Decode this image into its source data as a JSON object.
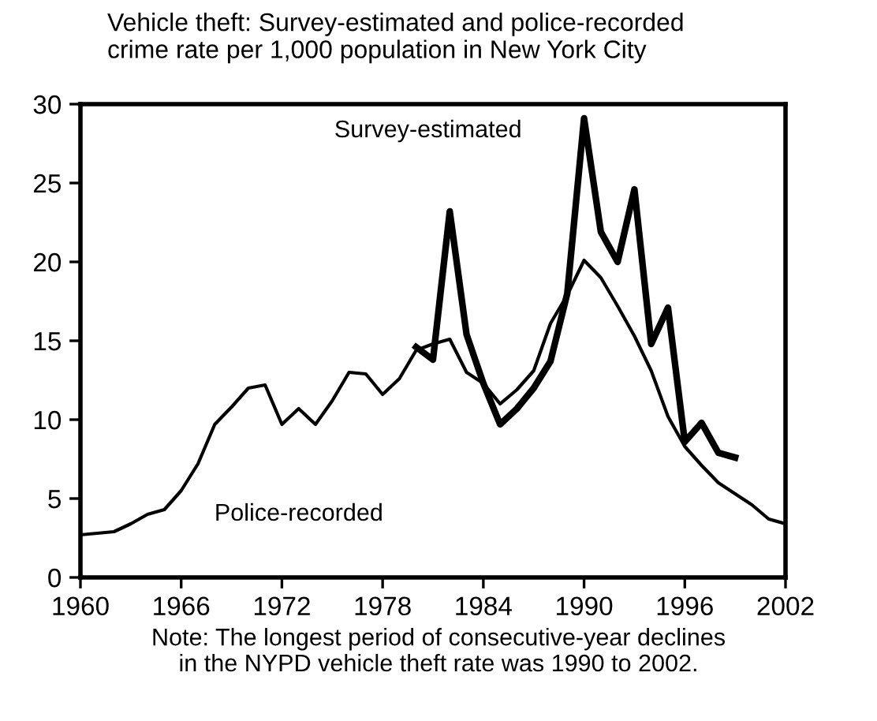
{
  "chart_data": {
    "type": "line",
    "title": "Vehicle theft: Survey-estimated and police-recorded\ncrime rate per 1,000 population in New York City",
    "annotations": [
      "Note: The longest period of consecutive-year declines\nin the NYPD vehicle theft rate was 1990 to 2002."
    ],
    "series": [
      {
        "name": "Survey-estimated",
        "color": "#000000",
        "x": [
          1980,
          1981,
          1982,
          1983,
          1984,
          1985,
          1986,
          1987,
          1988,
          1989,
          1990,
          1991,
          1992,
          1993,
          1994,
          1995,
          1996,
          1997,
          1998,
          1999
        ],
        "values": [
          14.6,
          13.8,
          23.2,
          15.4,
          12.3,
          9.7,
          10.7,
          12.0,
          13.7,
          18.0,
          29.1,
          21.9,
          20.0,
          24.6,
          14.8,
          17.1,
          8.6,
          9.8,
          7.9,
          7.6
        ]
      },
      {
        "name": "Police-recorded",
        "color": "#000000",
        "x": [
          1960,
          1962,
          1963,
          1964,
          1965,
          1966,
          1967,
          1968,
          1969,
          1970,
          1971,
          1972,
          1973,
          1974,
          1975,
          1976,
          1977,
          1978,
          1979,
          1980,
          1981,
          1982,
          1983,
          1984,
          1985,
          1986,
          1987,
          1988,
          1989,
          1990,
          1991,
          1992,
          1993,
          1994,
          1995,
          1996,
          1997,
          1998,
          1999,
          2000,
          2001,
          2002
        ],
        "values": [
          2.7,
          2.9,
          3.4,
          4.0,
          4.3,
          5.5,
          7.2,
          9.7,
          10.8,
          12.0,
          12.2,
          9.7,
          10.7,
          9.7,
          11.2,
          13.0,
          12.9,
          11.6,
          12.6,
          14.4,
          14.8,
          15.1,
          13.0,
          12.3,
          11.0,
          11.9,
          13.1,
          16.1,
          17.9,
          20.1,
          19.0,
          17.2,
          15.3,
          13.1,
          10.2,
          8.3,
          7.1,
          6.0,
          5.3,
          4.6,
          3.7,
          3.4
        ]
      }
    ],
    "xlim": [
      1960,
      2002
    ],
    "xticks": [
      1960,
      1966,
      1972,
      1978,
      1984,
      1990,
      1996,
      2002
    ],
    "ylim": [
      0,
      30
    ],
    "yticks": [
      0,
      5,
      10,
      15,
      20,
      25,
      30
    ],
    "grid": false,
    "legend": false,
    "marker": "none",
    "line_style": "solid"
  }
}
